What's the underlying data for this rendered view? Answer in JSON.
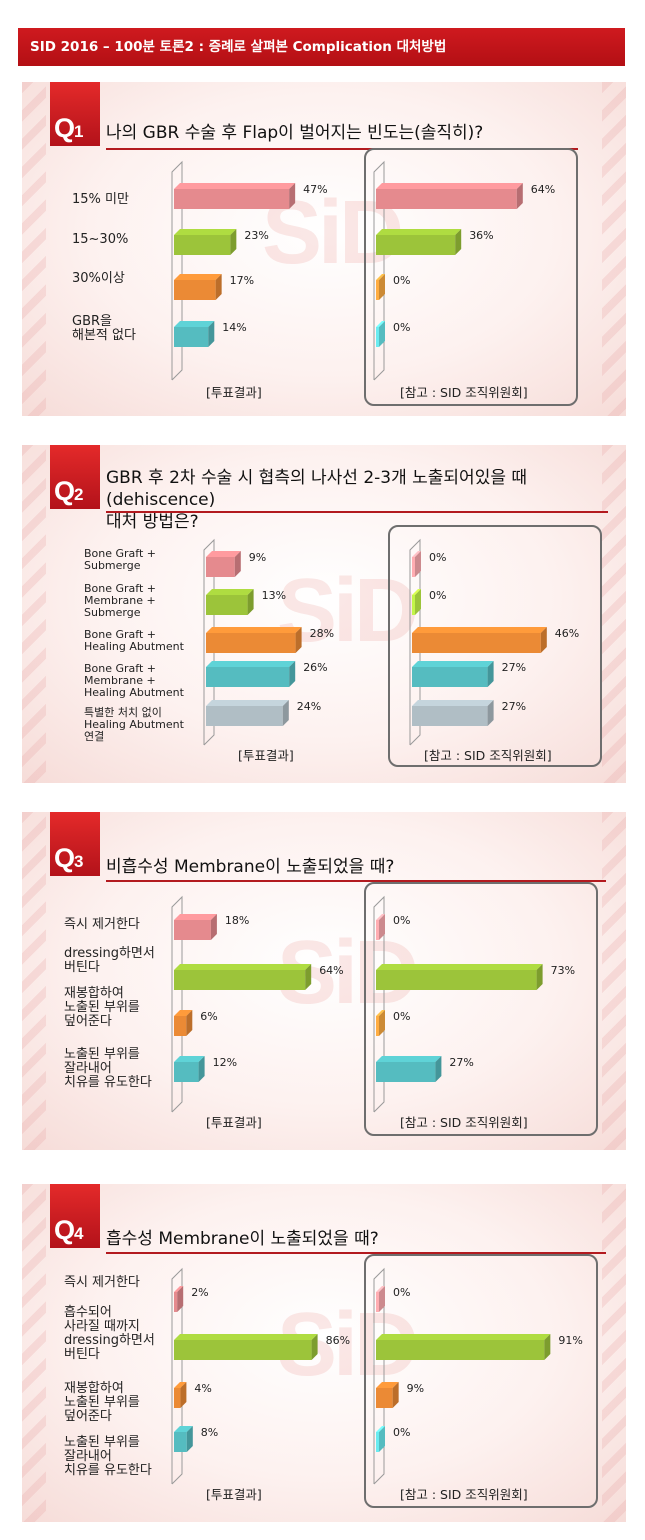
{
  "header": {
    "title": "SID 2016 – 100분 토론2 : 증례로 살펴본 Complication 대처방법"
  },
  "watermark_text": "SiD",
  "left_note": "[투표결과]",
  "right_note": "[참고 : SID 조직위원회]",
  "colors": {
    "pink": "#e58a8e",
    "green": "#9cc43a",
    "orange": "#eb8a35",
    "teal": "#55bcc0",
    "gray": "#b0bec5",
    "header": "#c4161c",
    "accent": "#b31a1f"
  },
  "chart_data": [
    {
      "type": "bar",
      "badge": "Q1",
      "title": "나의 GBR 수술 후 Flap이 벌어지는 빈도는(솔직히)?",
      "categories": [
        "15% 미만",
        "15~30%",
        "30%이상",
        "GBR을\n해본적 없다"
      ],
      "series": [
        {
          "name": "[투표결과]",
          "values": [
            47,
            23,
            17,
            14
          ],
          "labels": [
            "47%",
            "23%",
            "17%",
            "14%"
          ]
        },
        {
          "name": "[참고 : SID 조직위원회]",
          "values": [
            64,
            36,
            0,
            0
          ],
          "labels": [
            "64%",
            "36%",
            "0%",
            "0%"
          ]
        }
      ]
    },
    {
      "type": "bar",
      "badge": "Q2",
      "title": "GBR 후 2차 수술 시 협측의 나사선 2-3개 노출되어있을 때(dehiscence)\n대처 방법은?",
      "categories": [
        "Bone Graft +\nSubmerge",
        "Bone Graft +\nMembrane +\nSubmerge",
        "Bone Graft +\nHealing Abutment",
        "Bone Graft +\nMembrane +\nHealing Abutment",
        "특별한 처치 없이\nHealing Abutment\n연결"
      ],
      "series": [
        {
          "name": "[투표결과]",
          "values": [
            9,
            13,
            28,
            26,
            24
          ],
          "labels": [
            "9%",
            "13%",
            "28%",
            "26%",
            "24%"
          ]
        },
        {
          "name": "[참고 : SID 조직위원회]",
          "values": [
            0,
            0,
            46,
            27,
            27
          ],
          "labels": [
            "0%",
            "0%",
            "46%",
            "27%",
            "27%"
          ]
        }
      ]
    },
    {
      "type": "bar",
      "badge": "Q3",
      "title": "비흡수성 Membrane이 노출되었을 때?",
      "categories": [
        "즉시 제거한다",
        "dressing하면서\n버틴다",
        "재봉합하여\n노출된 부위를\n덮어준다",
        "노출된 부위를\n잘라내어\n치유를 유도한다"
      ],
      "series": [
        {
          "name": "[투표결과]",
          "values": [
            18,
            64,
            6,
            12
          ],
          "labels": [
            "18%",
            "64%",
            "6%",
            "12%"
          ]
        },
        {
          "name": "[참고 : SID 조직위원회]",
          "values": [
            0,
            73,
            0,
            27
          ],
          "labels": [
            "0%",
            "73%",
            "0%",
            "27%"
          ]
        }
      ]
    },
    {
      "type": "bar",
      "badge": "Q4",
      "title": "흡수성 Membrane이 노출되었을 때?",
      "categories": [
        "즉시 제거한다",
        "흡수되어\n사라질 때까지\ndressing하면서\n버틴다",
        "재봉합하여\n노출된 부위를\n덮어준다",
        "노출된 부위를\n잘라내어\n치유를 유도한다"
      ],
      "series": [
        {
          "name": "[투표결과]",
          "values": [
            2,
            86,
            4,
            8
          ],
          "labels": [
            "2%",
            "86%",
            "4%",
            "8%"
          ]
        },
        {
          "name": "[참고 : SID 조직위원회]",
          "values": [
            0,
            91,
            9,
            0
          ],
          "labels": [
            "0%",
            "91%",
            "9%",
            "0%"
          ]
        }
      ]
    }
  ]
}
